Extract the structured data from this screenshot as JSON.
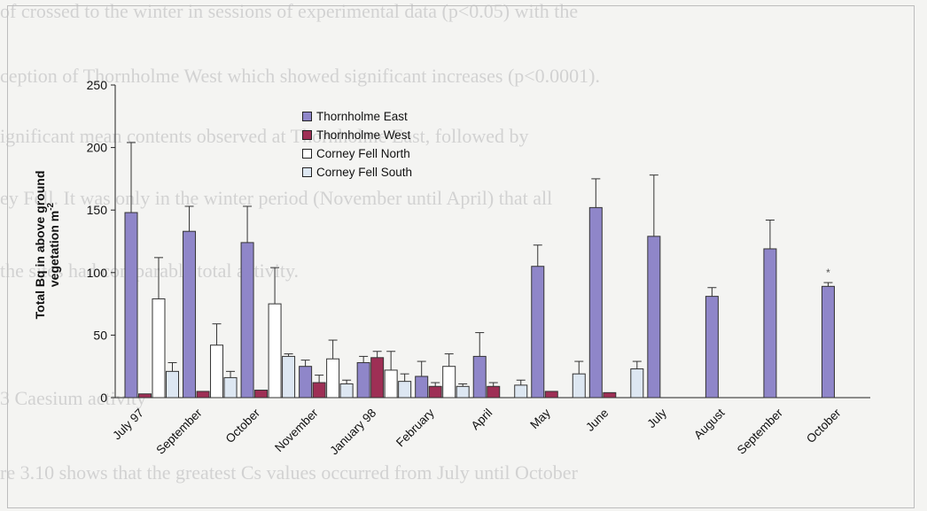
{
  "background_text": [
    "of crossed to the winter in sessions of experimental data (p<0.05) with the",
    "ception of Thornholme West which showed significant increases (p<0.0001).",
    "ignificant mean contents observed at Thornholme East, followed by",
    "ey Fell. It was only in the winter period (November until April) that all",
    "the sites had comparable total activity.",
    "3 Caesium activity",
    "re 3.10 shows that the greatest Cs values occurred from July until October"
  ],
  "chart_data": {
    "type": "bar",
    "ylabel": "Total Bq in above ground vegetation m^-2",
    "ylabel_lines": [
      "Total Bq in above ground",
      "vegetation m"
    ],
    "ylabel_sup": "-2",
    "ylim": [
      0,
      250
    ],
    "yticks": [
      0,
      50,
      100,
      150,
      200,
      250
    ],
    "legend_position": "top-center",
    "categories": [
      "July 97",
      "September",
      "October",
      "November",
      "January 98",
      "February",
      "April",
      "May",
      "June",
      "July",
      "August",
      "September",
      "October"
    ],
    "series": [
      {
        "name": "Thornholme East",
        "color": "#8f86c9",
        "values": [
          148,
          133,
          124,
          25,
          28,
          17,
          33,
          105,
          152,
          129,
          81,
          119,
          89
        ],
        "errors": [
          56,
          20,
          29,
          5,
          5,
          12,
          19,
          17,
          23,
          49,
          7,
          23,
          3
        ]
      },
      {
        "name": "Thornholme West",
        "color": "#9e2f55",
        "values": [
          3,
          5,
          6,
          12,
          32,
          9,
          9,
          5,
          4,
          null,
          null,
          null,
          null
        ],
        "errors": [
          0,
          0,
          0,
          6,
          5,
          3,
          3,
          0,
          0,
          0,
          0,
          0,
          0
        ]
      },
      {
        "name": "Corney Fell North",
        "color": "#ffffff",
        "values": [
          79,
          42,
          75,
          31,
          22,
          25,
          null,
          null,
          null,
          null,
          null,
          null,
          null
        ],
        "errors": [
          33,
          17,
          29,
          15,
          15,
          10,
          0,
          0,
          0,
          0,
          0,
          0,
          0
        ]
      },
      {
        "name": "Corney Fell South",
        "color": "#dde7f2",
        "values": [
          21,
          16,
          33,
          11,
          13,
          9,
          10,
          19,
          23,
          null,
          null,
          null,
          null
        ],
        "errors": [
          7,
          5,
          2,
          3,
          6,
          2,
          4,
          10,
          6,
          0,
          0,
          0,
          0
        ]
      }
    ],
    "annotations": [
      {
        "category": "October",
        "text": "*"
      }
    ]
  }
}
